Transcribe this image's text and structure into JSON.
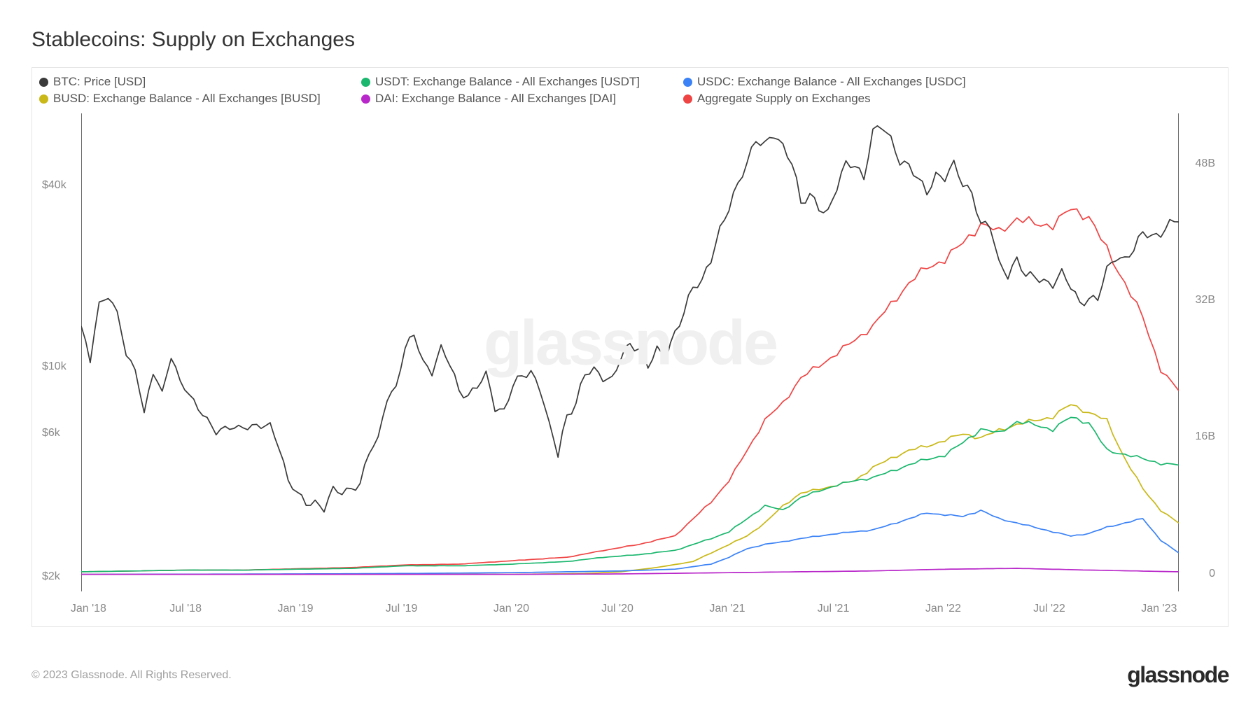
{
  "title": "Stablecoins: Supply on Exchanges",
  "watermark": "glassnode",
  "copyright": "© 2023 Glassnode. All Rights Reserved.",
  "brand": "glassnode",
  "chart": {
    "type": "line",
    "background_color": "#ffffff",
    "border_color": "#e4e4e4",
    "grid_color": "#f0f0f0",
    "text_color": "#888888",
    "line_width": 1.7,
    "x_axis": {
      "type": "date",
      "ticks": [
        "Jan '18",
        "Jul '18",
        "Jan '19",
        "Jul '19",
        "Jan '20",
        "Jul '20",
        "Jan '21",
        "Jul '21",
        "Jan '22",
        "Jul '22",
        "Jan '23"
      ]
    },
    "y_left": {
      "scale": "log",
      "ticks": [
        2000,
        6000,
        10000,
        40000
      ],
      "tick_labels": [
        "$2k",
        "$6k",
        "$10k",
        "$40k"
      ],
      "min": 1800,
      "max": 70000
    },
    "y_right": {
      "scale": "linear",
      "ticks": [
        0,
        16,
        32,
        48
      ],
      "tick_labels": [
        "0",
        "16B",
        "32B",
        "48B"
      ],
      "min": -2,
      "max": 54
    },
    "legend_layout": [
      [
        "btc",
        "busd"
      ],
      [
        "usdt",
        "dai"
      ],
      [
        "usdc",
        "aggregate"
      ]
    ],
    "series": {
      "btc": {
        "label": "BTC: Price [USD]",
        "color": "#3a3a3a",
        "axis": "left",
        "data": [
          [
            0,
            13500
          ],
          [
            0.5,
            10500
          ],
          [
            1,
            16500
          ],
          [
            1.5,
            17200
          ],
          [
            2,
            15000
          ],
          [
            2.5,
            11000
          ],
          [
            3,
            10000
          ],
          [
            3.5,
            7000
          ],
          [
            4,
            9500
          ],
          [
            4.5,
            8200
          ],
          [
            5,
            11000
          ],
          [
            5.5,
            9000
          ],
          [
            6,
            8000
          ],
          [
            6.5,
            7300
          ],
          [
            7,
            6800
          ],
          [
            7.5,
            6100
          ],
          [
            8,
            6200
          ],
          [
            8.5,
            6300
          ],
          [
            9,
            6400
          ],
          [
            9.5,
            6400
          ],
          [
            10,
            6300
          ],
          [
            10.5,
            6400
          ],
          [
            11,
            5500
          ],
          [
            11.5,
            4200
          ],
          [
            12,
            3800
          ],
          [
            12.5,
            3500
          ],
          [
            13,
            3600
          ],
          [
            13.5,
            3400
          ],
          [
            14,
            3900
          ],
          [
            14.5,
            3800
          ],
          [
            15,
            4000
          ],
          [
            15.5,
            4100
          ],
          [
            16,
            5200
          ],
          [
            16.5,
            5700
          ],
          [
            17,
            8000
          ],
          [
            17.5,
            8600
          ],
          [
            18,
            11500
          ],
          [
            18.5,
            12800
          ],
          [
            19,
            10500
          ],
          [
            19.5,
            9700
          ],
          [
            20,
            11500
          ],
          [
            20.5,
            10200
          ],
          [
            21,
            8400
          ],
          [
            21.5,
            8100
          ],
          [
            22,
            8600
          ],
          [
            22.5,
            9400
          ],
          [
            23,
            7400
          ],
          [
            23.5,
            7200
          ],
          [
            24,
            8700
          ],
          [
            24.5,
            9300
          ],
          [
            25,
            9700
          ],
          [
            25.5,
            8600
          ],
          [
            26,
            6400
          ],
          [
            26.5,
            5100
          ],
          [
            27,
            6900
          ],
          [
            27.5,
            7700
          ],
          [
            28,
            9500
          ],
          [
            28.5,
            9700
          ],
          [
            29,
            9300
          ],
          [
            29.5,
            9200
          ],
          [
            30,
            10800
          ],
          [
            30.5,
            11800
          ],
          [
            31,
            11500
          ],
          [
            31.5,
            10300
          ],
          [
            32,
            11400
          ],
          [
            32.5,
            10700
          ],
          [
            33,
            13000
          ],
          [
            33.5,
            15500
          ],
          [
            34,
            18500
          ],
          [
            34.5,
            19000
          ],
          [
            35,
            23000
          ],
          [
            35.5,
            29000
          ],
          [
            36,
            34000
          ],
          [
            36.5,
            40000
          ],
          [
            37,
            48000
          ],
          [
            37.5,
            58000
          ],
          [
            38,
            55000
          ],
          [
            38.5,
            59000
          ],
          [
            39,
            54000
          ],
          [
            39.5,
            49000
          ],
          [
            40,
            35000
          ],
          [
            40.5,
            37000
          ],
          [
            41,
            34000
          ],
          [
            41.5,
            33000
          ],
          [
            42,
            40000
          ],
          [
            42.5,
            47000
          ],
          [
            43,
            47000
          ],
          [
            43.5,
            43000
          ],
          [
            44,
            61000
          ],
          [
            44.5,
            63000
          ],
          [
            45,
            57000
          ],
          [
            45.5,
            49000
          ],
          [
            46,
            47000
          ],
          [
            46.5,
            42000
          ],
          [
            47,
            38000
          ],
          [
            47.5,
            44000
          ],
          [
            48,
            43000
          ],
          [
            48.5,
            47000
          ],
          [
            49,
            40500
          ],
          [
            49.5,
            38500
          ],
          [
            50,
            30000
          ],
          [
            50.5,
            29500
          ],
          [
            51,
            22000
          ],
          [
            51.5,
            20500
          ],
          [
            52,
            23000
          ],
          [
            52.5,
            20000
          ],
          [
            53,
            20000
          ],
          [
            53.5,
            19500
          ],
          [
            54,
            19000
          ],
          [
            54.5,
            20500
          ],
          [
            55,
            18500
          ],
          [
            55.5,
            16500
          ],
          [
            56,
            17000
          ],
          [
            56.5,
            16800
          ],
          [
            57,
            21000
          ],
          [
            57.5,
            23500
          ],
          [
            58,
            23000
          ],
          [
            58.5,
            24500
          ],
          [
            59,
            28000
          ],
          [
            59.5,
            27500
          ],
          [
            60,
            28000
          ],
          [
            60.5,
            30000
          ],
          [
            61,
            30500
          ]
        ]
      },
      "usdt": {
        "label": "USDT: Exchange Balance - All Exchanges [USDT]",
        "color": "#1bb76e",
        "axis": "right",
        "data": [
          [
            0,
            0.3
          ],
          [
            3,
            0.4
          ],
          [
            6,
            0.5
          ],
          [
            9,
            0.5
          ],
          [
            12,
            0.6
          ],
          [
            15,
            0.7
          ],
          [
            18,
            1.0
          ],
          [
            21,
            1.0
          ],
          [
            24,
            1.2
          ],
          [
            27,
            1.5
          ],
          [
            29,
            2.0
          ],
          [
            31,
            2.3
          ],
          [
            33,
            2.8
          ],
          [
            35,
            4.2
          ],
          [
            36,
            5.0
          ],
          [
            37,
            6.5
          ],
          [
            38,
            8.0
          ],
          [
            39,
            7.5
          ],
          [
            40,
            9.0
          ],
          [
            41,
            9.8
          ],
          [
            42,
            10.5
          ],
          [
            43,
            11.0
          ],
          [
            44,
            11.3
          ],
          [
            45,
            12.0
          ],
          [
            46,
            12.8
          ],
          [
            47,
            13.5
          ],
          [
            48,
            14.0
          ],
          [
            49,
            15.5
          ],
          [
            50,
            17.0
          ],
          [
            51,
            16.5
          ],
          [
            52,
            17.8
          ],
          [
            53,
            17.5
          ],
          [
            54,
            17.0
          ],
          [
            55,
            18.5
          ],
          [
            56,
            17.8
          ],
          [
            57,
            14.5
          ],
          [
            58,
            14.0
          ],
          [
            59,
            13.5
          ],
          [
            60,
            13.0
          ],
          [
            61,
            12.8
          ]
        ]
      },
      "usdc": {
        "label": "USDC: Exchange Balance - All Exchanges [USDC]",
        "color": "#3b82f6",
        "axis": "right",
        "data": [
          [
            0,
            0
          ],
          [
            12,
            0.05
          ],
          [
            18,
            0.1
          ],
          [
            24,
            0.2
          ],
          [
            30,
            0.4
          ],
          [
            33,
            0.6
          ],
          [
            35,
            1.2
          ],
          [
            36,
            2.0
          ],
          [
            37,
            3.0
          ],
          [
            38,
            3.5
          ],
          [
            39,
            3.8
          ],
          [
            40,
            4.2
          ],
          [
            41,
            4.5
          ],
          [
            42,
            4.8
          ],
          [
            43,
            5.0
          ],
          [
            44,
            5.2
          ],
          [
            45,
            5.8
          ],
          [
            46,
            6.5
          ],
          [
            47,
            7.2
          ],
          [
            48,
            7.0
          ],
          [
            49,
            6.8
          ],
          [
            50,
            7.5
          ],
          [
            51,
            6.5
          ],
          [
            52,
            6.0
          ],
          [
            53,
            5.5
          ],
          [
            54,
            5.0
          ],
          [
            55,
            4.5
          ],
          [
            56,
            4.8
          ],
          [
            57,
            5.5
          ],
          [
            58,
            6.0
          ],
          [
            59,
            6.5
          ],
          [
            60,
            4.0
          ],
          [
            61,
            2.5
          ]
        ]
      },
      "busd": {
        "label": "BUSD: Exchange Balance - All Exchanges [BUSD]",
        "color": "#c9b817",
        "axis": "right",
        "data": [
          [
            0,
            0
          ],
          [
            24,
            0
          ],
          [
            28,
            0.1
          ],
          [
            30,
            0.3
          ],
          [
            32,
            0.8
          ],
          [
            34,
            1.5
          ],
          [
            35,
            2.5
          ],
          [
            36,
            3.5
          ],
          [
            37,
            4.5
          ],
          [
            38,
            6.0
          ],
          [
            39,
            8.0
          ],
          [
            40,
            9.5
          ],
          [
            41,
            10.0
          ],
          [
            42,
            10.5
          ],
          [
            43,
            11.0
          ],
          [
            44,
            12.5
          ],
          [
            45,
            13.5
          ],
          [
            46,
            14.5
          ],
          [
            47,
            15.0
          ],
          [
            48,
            15.8
          ],
          [
            49,
            16.5
          ],
          [
            50,
            16.0
          ],
          [
            51,
            16.8
          ],
          [
            52,
            17.5
          ],
          [
            53,
            18.0
          ],
          [
            54,
            18.5
          ],
          [
            55,
            20.0
          ],
          [
            56,
            19.0
          ],
          [
            57,
            18.0
          ],
          [
            58,
            13.5
          ],
          [
            59,
            10.0
          ],
          [
            60,
            7.5
          ],
          [
            61,
            6.0
          ]
        ]
      },
      "dai": {
        "label": "DAI: Exchange Balance - All Exchanges [DAI]",
        "color": "#b827c9",
        "axis": "right",
        "data": [
          [
            0,
            0
          ],
          [
            24,
            0
          ],
          [
            30,
            0.05
          ],
          [
            36,
            0.2
          ],
          [
            40,
            0.3
          ],
          [
            44,
            0.4
          ],
          [
            48,
            0.6
          ],
          [
            52,
            0.7
          ],
          [
            56,
            0.5
          ],
          [
            61,
            0.3
          ]
        ]
      },
      "aggregate": {
        "label": "Aggregate Supply on Exchanges",
        "color": "#ef4444",
        "axis": "right",
        "data": [
          [
            0,
            0.3
          ],
          [
            3,
            0.4
          ],
          [
            6,
            0.5
          ],
          [
            9,
            0.5
          ],
          [
            12,
            0.65
          ],
          [
            15,
            0.8
          ],
          [
            18,
            1.1
          ],
          [
            21,
            1.2
          ],
          [
            24,
            1.6
          ],
          [
            27,
            2.0
          ],
          [
            29,
            2.8
          ],
          [
            31,
            3.5
          ],
          [
            33,
            4.5
          ],
          [
            35,
            8.5
          ],
          [
            36,
            11.0
          ],
          [
            37,
            14.5
          ],
          [
            38,
            18.0
          ],
          [
            39,
            20.0
          ],
          [
            40,
            23.0
          ],
          [
            41,
            24.5
          ],
          [
            42,
            26.0
          ],
          [
            43,
            27.5
          ],
          [
            44,
            29.0
          ],
          [
            45,
            31.5
          ],
          [
            46,
            34.0
          ],
          [
            47,
            36.0
          ],
          [
            48,
            37.0
          ],
          [
            49,
            39.0
          ],
          [
            50,
            41.0
          ],
          [
            51,
            40.0
          ],
          [
            52,
            41.5
          ],
          [
            53,
            41.0
          ],
          [
            54,
            41.0
          ],
          [
            55,
            43.0
          ],
          [
            56,
            42.0
          ],
          [
            57,
            38.0
          ],
          [
            58,
            34.0
          ],
          [
            59,
            30.0
          ],
          [
            60,
            24.0
          ],
          [
            61,
            21.5
          ]
        ]
      }
    }
  }
}
